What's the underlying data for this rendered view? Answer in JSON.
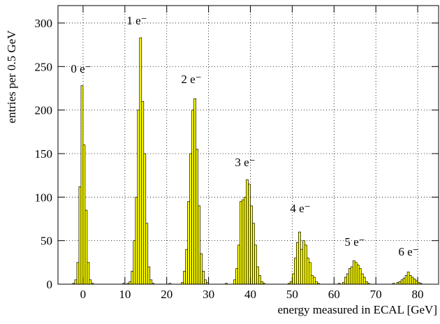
{
  "chart_data": {
    "type": "histogram",
    "y_label": "entries per 0.5 GeV",
    "x_label": "energy measured in ECAL [GeV]",
    "color": "#ffff00",
    "grid": true,
    "xlim": [
      -6,
      85
    ],
    "ylim": [
      0,
      320
    ],
    "xticks": [
      0,
      10,
      20,
      30,
      40,
      50,
      60,
      70,
      80
    ],
    "yticks": [
      0,
      50,
      100,
      150,
      200,
      250,
      300
    ],
    "annotations": [
      "0 e⁻",
      "1 e⁻",
      "2 e⁻",
      "3 e⁻",
      "4 e⁻",
      "5 e⁻",
      "6 e⁻"
    ],
    "bins": [
      -3,
      -2.5,
      -2,
      -1.5,
      -1,
      -0.5,
      0,
      0.5,
      1,
      1.5,
      2,
      2.5,
      3,
      3.5,
      4,
      4.5,
      5,
      5.5,
      6,
      6.5,
      7,
      7.5,
      8,
      8.5,
      9,
      9.5,
      10,
      10.5,
      11,
      11.5,
      12,
      12.5,
      13,
      13.5,
      14,
      14.5,
      15,
      15.5,
      16,
      16.5,
      17,
      17.5,
      18,
      18.5,
      19,
      19.5,
      20,
      20.5,
      21,
      21.5,
      22,
      22.5,
      23,
      23.5,
      24,
      24.5,
      25,
      25.5,
      26,
      26.5,
      27,
      27.5,
      28,
      28.5,
      29,
      29.5,
      30,
      30.5,
      31,
      31.5,
      32,
      32.5,
      33,
      33.5,
      34,
      34.5,
      35,
      35.5,
      36,
      36.5,
      37,
      37.5,
      38,
      38.5,
      39,
      39.5,
      40,
      40.5,
      41,
      41.5,
      42,
      42.5,
      43,
      43.5,
      44,
      44.5,
      45,
      45.5,
      46,
      46.5,
      47,
      47.5,
      48,
      48.5,
      49,
      49.5,
      50,
      50.5,
      51,
      51.5,
      52,
      52.5,
      53,
      53.5,
      54,
      54.5,
      55,
      55.5,
      56,
      56.5,
      57,
      57.5,
      58,
      58.5,
      59,
      59.5,
      60,
      60.5,
      61,
      61.5,
      62,
      62.5,
      63,
      63.5,
      64,
      64.5,
      65,
      65.5,
      66,
      66.5,
      67,
      67.5,
      68,
      68.5,
      69,
      69.5,
      70,
      70.5,
      71,
      71.5,
      72,
      72.5,
      73,
      73.5,
      74,
      74.5,
      75,
      75.5,
      76,
      76.5,
      77,
      77.5,
      78,
      78.5,
      79,
      79.5,
      80,
      80.5,
      81
    ],
    "values": [
      0,
      1,
      5,
      25,
      112,
      228,
      160,
      85,
      25,
      5,
      1,
      0,
      0,
      0,
      0,
      0,
      0,
      0,
      0,
      0,
      0,
      0,
      0,
      0,
      0,
      1,
      0,
      1,
      3,
      15,
      50,
      100,
      200,
      283,
      210,
      150,
      70,
      20,
      5,
      1,
      0,
      0,
      0,
      0,
      0,
      0,
      0,
      1,
      0,
      0,
      0,
      0,
      0,
      2,
      15,
      40,
      95,
      150,
      200,
      213,
      155,
      90,
      35,
      15,
      5,
      2,
      0,
      0,
      0,
      0,
      0,
      0,
      0,
      0,
      1,
      0,
      0,
      0,
      5,
      18,
      45,
      95,
      97,
      100,
      120,
      115,
      90,
      70,
      45,
      20,
      10,
      3,
      1,
      0,
      0,
      0,
      0,
      0,
      0,
      0,
      0,
      0,
      0,
      0,
      1,
      3,
      12,
      30,
      48,
      60,
      40,
      50,
      45,
      30,
      25,
      10,
      8,
      3,
      1,
      0,
      0,
      0,
      0,
      0,
      0,
      0,
      0,
      0,
      1,
      0,
      2,
      8,
      12,
      18,
      20,
      27,
      25,
      22,
      18,
      12,
      8,
      3,
      1,
      0,
      0,
      0,
      0,
      0,
      0,
      0,
      0,
      0,
      0,
      0,
      1,
      0,
      2,
      3,
      5,
      7,
      10,
      14,
      10,
      8,
      6,
      4,
      2,
      1
    ]
  }
}
